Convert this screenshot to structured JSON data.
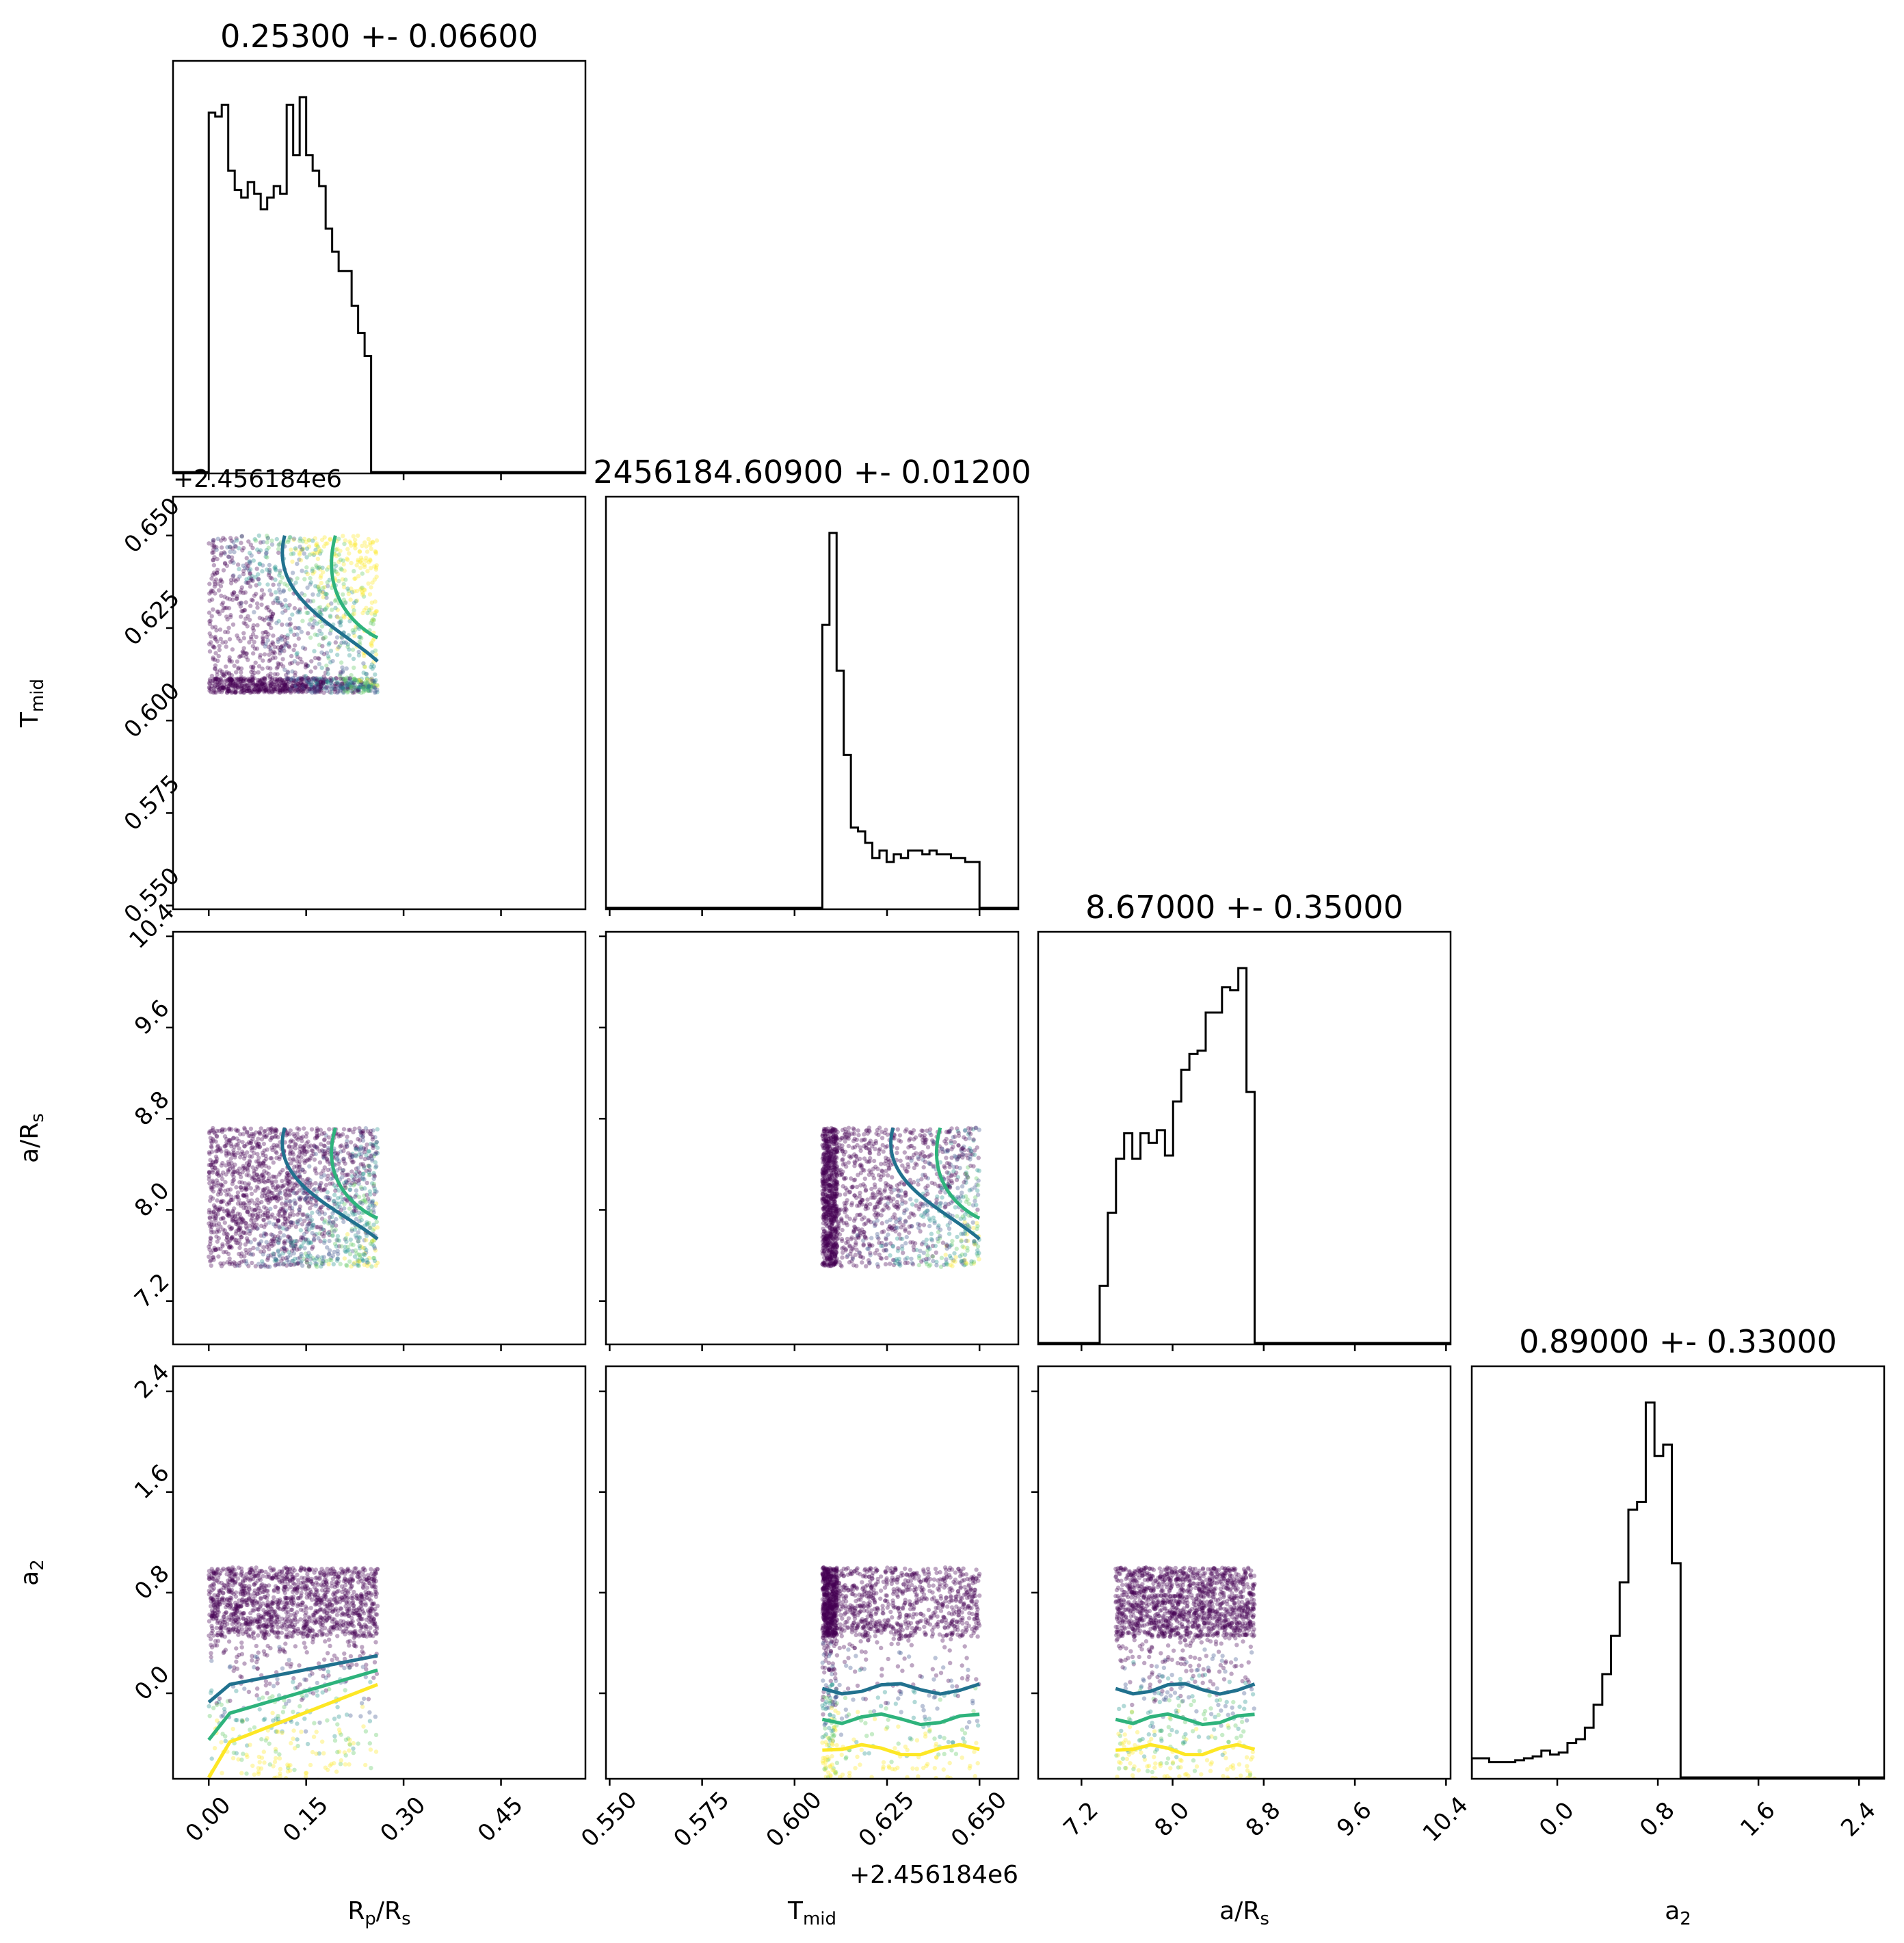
{
  "chart_data": {
    "type": "corner",
    "parameters": [
      {
        "key": "rp",
        "label_main": "R",
        "label_sub": "p",
        "label_tail": "/R",
        "label_sub2": "s",
        "title": "0.25300 +- 0.06600",
        "range": [
          -0.055,
          0.58
        ],
        "ticks": [
          "0.00",
          "0.15",
          "0.30",
          "0.45"
        ],
        "tick_values": [
          0.0,
          0.15,
          0.3,
          0.45
        ],
        "samples_range": [
          0.0,
          0.26
        ],
        "hist_edges_range": [
          0.0,
          0.26
        ],
        "hist_counts": [
          0.93,
          0.92,
          0.95,
          0.78,
          0.73,
          0.71,
          0.75,
          0.72,
          0.68,
          0.71,
          0.74,
          0.72,
          0.95,
          0.82,
          0.97,
          0.82,
          0.78,
          0.74,
          0.63,
          0.57,
          0.52,
          0.52,
          0.43,
          0.36,
          0.3,
          0.0
        ]
      },
      {
        "key": "tmid",
        "label_main": "T",
        "label_sub": "mid",
        "title": "2456184.60900 +- 0.01200",
        "offset_text": "+2.456184e6",
        "range": [
          0.549,
          0.6605
        ],
        "ticks": [
          "0.550",
          "0.575",
          "0.600",
          "0.625",
          "0.650"
        ],
        "tick_values": [
          0.55,
          0.575,
          0.6,
          0.625,
          0.65
        ],
        "samples_range": [
          0.6075,
          0.65
        ],
        "hist_edges_range": [
          0.6075,
          0.65
        ],
        "hist_counts": [
          0.74,
          0.98,
          0.62,
          0.4,
          0.21,
          0.2,
          0.17,
          0.13,
          0.15,
          0.12,
          0.14,
          0.13,
          0.15,
          0.15,
          0.14,
          0.15,
          0.14,
          0.14,
          0.13,
          0.13,
          0.12,
          0.12
        ]
      },
      {
        "key": "ars",
        "label_main": "a/R",
        "label_sub": "s",
        "title": "8.67000 +- 0.35000",
        "range": [
          6.82,
          10.44
        ],
        "ticks": [
          "7.2",
          "8.0",
          "8.8",
          "9.6",
          "10.4"
        ],
        "tick_values": [
          7.2,
          8.0,
          8.8,
          9.6,
          10.4
        ],
        "samples_range": [
          7.5,
          8.72
        ],
        "hist_edges_range": [
          7.36,
          8.72
        ],
        "hist_counts": [
          0.18,
          0.41,
          0.58,
          0.66,
          0.58,
          0.66,
          0.63,
          0.67,
          0.59,
          0.76,
          0.86,
          0.91,
          0.92,
          1.04,
          1.04,
          1.12,
          1.11,
          1.18,
          0.79
        ]
      },
      {
        "key": "a2",
        "label_main": "a",
        "label_sub": "2",
        "title": "0.89000 +- 0.33000",
        "range": [
          -0.68,
          2.6
        ],
        "ticks": [
          "0.0",
          "0.8",
          "1.6",
          "2.4"
        ],
        "tick_values": [
          0.0,
          0.8,
          1.6,
          2.4
        ],
        "samples_range": [
          -0.75,
          1.0
        ],
        "hist_edges_range": [
          -0.68,
          1.05
        ],
        "hist_counts": [
          0.05,
          0.05,
          0.04,
          0.04,
          0.04,
          0.045,
          0.05,
          0.055,
          0.07,
          0.06,
          0.065,
          0.09,
          0.1,
          0.13,
          0.19,
          0.27,
          0.37,
          0.51,
          0.7,
          0.72,
          0.98,
          0.84,
          0.87,
          0.56,
          0.0
        ]
      }
    ],
    "contours": {
      "colors": [
        "#21718e",
        "#2eb37c",
        "#fde725"
      ],
      "levels": 3
    },
    "scatter_colormap": [
      "#440154",
      "#3b528b",
      "#21918c",
      "#5ec962",
      "#fde725"
    ]
  }
}
